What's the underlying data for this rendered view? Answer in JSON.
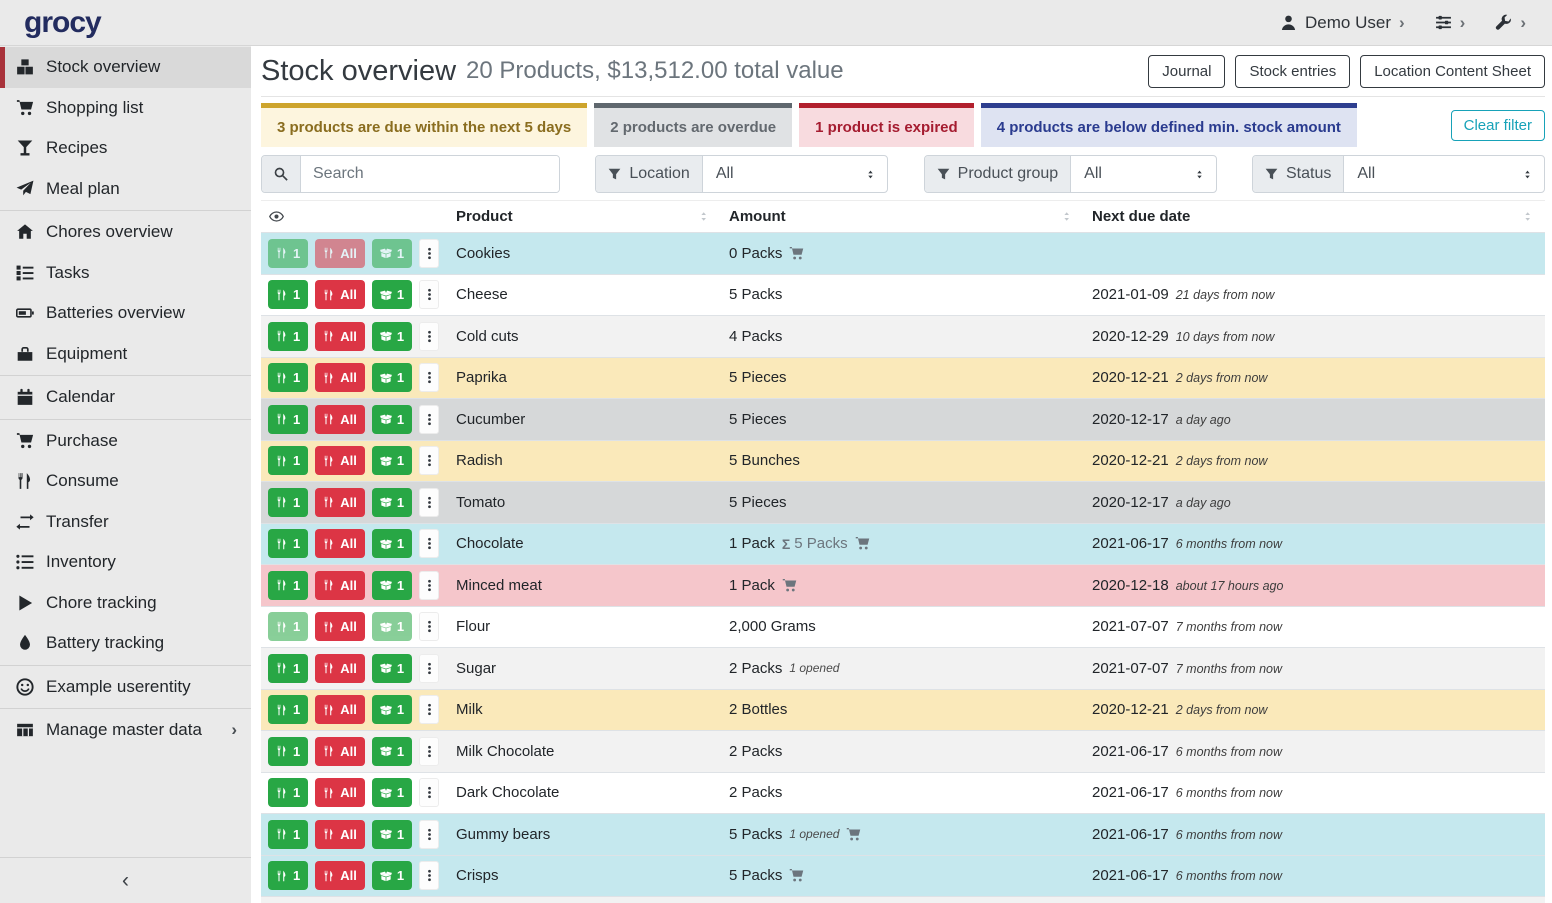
{
  "navbar": {
    "logo": "grocy",
    "user": {
      "icon": "user",
      "label": "Demo User"
    },
    "menu_icons": [
      "sliders",
      "wrench"
    ],
    "chevron": "›"
  },
  "sidebar": {
    "items": [
      {
        "icon": "boxes",
        "label": "Stock overview",
        "active": true
      },
      {
        "icon": "cart",
        "label": "Shopping list"
      },
      {
        "icon": "cocktail",
        "label": "Recipes"
      },
      {
        "icon": "paper-plane",
        "label": "Meal plan",
        "divider_after": true
      },
      {
        "icon": "home",
        "label": "Chores overview"
      },
      {
        "icon": "tasks",
        "label": "Tasks"
      },
      {
        "icon": "battery",
        "label": "Batteries overview"
      },
      {
        "icon": "toolbox",
        "label": "Equipment",
        "divider_after": true
      },
      {
        "icon": "calendar",
        "label": "Calendar",
        "divider_after": true
      },
      {
        "icon": "cart",
        "label": "Purchase"
      },
      {
        "icon": "utensils",
        "label": "Consume"
      },
      {
        "icon": "exchange",
        "label": "Transfer"
      },
      {
        "icon": "list",
        "label": "Inventory"
      },
      {
        "icon": "play",
        "label": "Chore tracking"
      },
      {
        "icon": "flame",
        "label": "Battery tracking",
        "divider_after": true
      },
      {
        "icon": "smile",
        "label": "Example userentity",
        "divider_after": true
      },
      {
        "icon": "table",
        "label": "Manage master data",
        "chevron": true
      }
    ],
    "collapse_glyph": "‹",
    "chevron_glyph": "›"
  },
  "header": {
    "title": "Stock overview",
    "subtitle": "20 Products, $13,512.00 total value",
    "buttons": [
      "Journal",
      "Stock entries",
      "Location Content Sheet"
    ]
  },
  "banners": [
    {
      "type": "warning",
      "text": "3 products are due within the next 5 days"
    },
    {
      "type": "secondary",
      "text": "2 products are overdue"
    },
    {
      "type": "danger",
      "text": "1 product is expired"
    },
    {
      "type": "primary",
      "text": "4 products are below defined min. stock amount"
    }
  ],
  "clear_filter_label": "Clear filter",
  "filters": {
    "search_placeholder": "Search",
    "selects": [
      {
        "icon": "filter",
        "label": "Location",
        "value": "All"
      },
      {
        "icon": "filter",
        "label": "Product group",
        "value": "All"
      },
      {
        "icon": "filter",
        "label": "Status",
        "value": "All"
      }
    ]
  },
  "table": {
    "columns": [
      "Product",
      "Amount",
      "Next due date"
    ],
    "row_buttons": {
      "consume_one": "1",
      "consume_all": "All",
      "open_one": "1"
    },
    "sum_symbol": "Σ",
    "rows": [
      {
        "product": "Cookies",
        "amount": "0 Packs",
        "cart": true,
        "status": "info",
        "disabled": "all",
        "date": "",
        "rel": ""
      },
      {
        "product": "Cheese",
        "amount": "5 Packs",
        "date": "2021-01-09",
        "rel": "21 days from now"
      },
      {
        "product": "Cold cuts",
        "amount": "4 Packs",
        "date": "2020-12-29",
        "rel": "10 days from now"
      },
      {
        "product": "Paprika",
        "amount": "5 Pieces",
        "status": "warning",
        "date": "2020-12-21",
        "rel": "2 days from now"
      },
      {
        "product": "Cucumber",
        "amount": "5 Pieces",
        "status": "overdue",
        "date": "2020-12-17",
        "rel": "a day ago"
      },
      {
        "product": "Radish",
        "amount": "5 Bunches",
        "status": "warning",
        "date": "2020-12-21",
        "rel": "2 days from now"
      },
      {
        "product": "Tomato",
        "amount": "5 Pieces",
        "status": "overdue",
        "date": "2020-12-17",
        "rel": "a day ago"
      },
      {
        "product": "Chocolate",
        "amount": "1 Pack",
        "sum": "5 Packs",
        "cart": true,
        "status": "info",
        "date": "2021-06-17",
        "rel": "6 months from now"
      },
      {
        "product": "Minced meat",
        "amount": "1 Pack",
        "cart": true,
        "status": "danger",
        "date": "2020-12-18",
        "rel": "about 17 hours ago"
      },
      {
        "product": "Flour",
        "amount": "2,000 Grams",
        "disabled": "partial",
        "date": "2021-07-07",
        "rel": "7 months from now"
      },
      {
        "product": "Sugar",
        "amount": "2 Packs",
        "opened": "1 opened",
        "date": "2021-07-07",
        "rel": "7 months from now"
      },
      {
        "product": "Milk",
        "amount": "2 Bottles",
        "status": "warning",
        "date": "2020-12-21",
        "rel": "2 days from now"
      },
      {
        "product": "Milk Chocolate",
        "amount": "2 Packs",
        "date": "2021-06-17",
        "rel": "6 months from now"
      },
      {
        "product": "Dark Chocolate",
        "amount": "2 Packs",
        "date": "2021-06-17",
        "rel": "6 months from now"
      },
      {
        "product": "Gummy bears",
        "amount": "5 Packs",
        "opened": "1 opened",
        "cart": true,
        "status": "info",
        "date": "2021-06-17",
        "rel": "6 months from now"
      },
      {
        "product": "Crisps",
        "amount": "5 Packs",
        "cart": true,
        "status": "info",
        "date": "2021-06-17",
        "rel": "6 months from now"
      }
    ]
  },
  "colors": {
    "brand_navy": "#232c5f",
    "success_green": "#28a745",
    "danger_red": "#dc3545",
    "teal_info": "#17a2b8",
    "row_info_bg": "#c5e8ee",
    "row_warning_bg": "#fae9ba",
    "row_overdue_bg": "#d6d8d9",
    "row_danger_bg": "#f5c6cb",
    "active_item_red": "#a8323a",
    "sidebar_bg": "#eaeaea"
  }
}
